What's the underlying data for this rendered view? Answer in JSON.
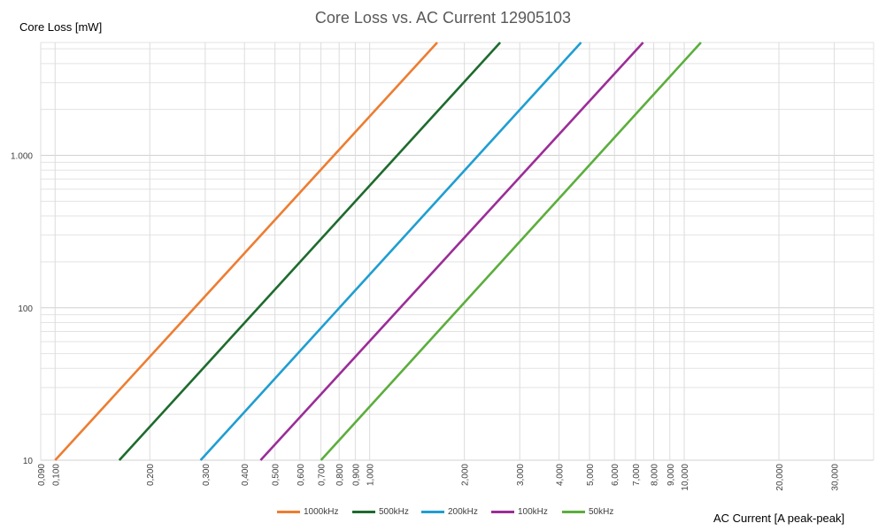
{
  "chart_data": {
    "type": "line",
    "title": "Core Loss vs. AC Current 12905103",
    "xlabel": "AC Current [A peak-peak]",
    "ylabel": "Core Loss [mW]",
    "x_scale": "log",
    "y_scale": "log",
    "xlim": [
      0.09,
      40
    ],
    "ylim": [
      10,
      5500
    ],
    "grid": true,
    "legend_position": "bottom",
    "x_ticks": [
      {
        "value": 0.09,
        "label": "0,090"
      },
      {
        "value": 0.1,
        "label": "0,100"
      },
      {
        "value": 0.2,
        "label": "0,200"
      },
      {
        "value": 0.3,
        "label": "0,300"
      },
      {
        "value": 0.4,
        "label": "0,400"
      },
      {
        "value": 0.5,
        "label": "0,500"
      },
      {
        "value": 0.6,
        "label": "0,600"
      },
      {
        "value": 0.7,
        "label": "0,700"
      },
      {
        "value": 0.8,
        "label": "0,800"
      },
      {
        "value": 0.9,
        "label": "0,900"
      },
      {
        "value": 1,
        "label": "1,000"
      },
      {
        "value": 2,
        "label": "2,000"
      },
      {
        "value": 3,
        "label": "3,000"
      },
      {
        "value": 4,
        "label": "4,000"
      },
      {
        "value": 5,
        "label": "5,000"
      },
      {
        "value": 6,
        "label": "6,000"
      },
      {
        "value": 7,
        "label": "7,000"
      },
      {
        "value": 8,
        "label": "8,000"
      },
      {
        "value": 9,
        "label": "9,000"
      },
      {
        "value": 10,
        "label": "10,000"
      },
      {
        "value": 20,
        "label": "20,000"
      },
      {
        "value": 30,
        "label": "30,000"
      }
    ],
    "y_ticks": [
      {
        "value": 10,
        "label": "10"
      },
      {
        "value": 100,
        "label": "100"
      },
      {
        "value": 1000,
        "label": "1.000"
      }
    ],
    "series": [
      {
        "name": "1000kHz",
        "color": "#ED7D31",
        "x": [
          0.1,
          1.64
        ],
        "y": [
          10,
          5500
        ]
      },
      {
        "name": "500kHz",
        "color": "#1E6B2E",
        "x": [
          0.16,
          2.6
        ],
        "y": [
          10,
          5500
        ]
      },
      {
        "name": "200kHz",
        "color": "#1F9ED1",
        "x": [
          0.29,
          4.7
        ],
        "y": [
          10,
          5500
        ]
      },
      {
        "name": "100kHz",
        "color": "#9B2D98",
        "x": [
          0.45,
          7.4
        ],
        "y": [
          10,
          5500
        ]
      },
      {
        "name": "50kHz",
        "color": "#5BAE3C",
        "x": [
          0.7,
          11.3
        ],
        "y": [
          10,
          5500
        ]
      }
    ]
  }
}
